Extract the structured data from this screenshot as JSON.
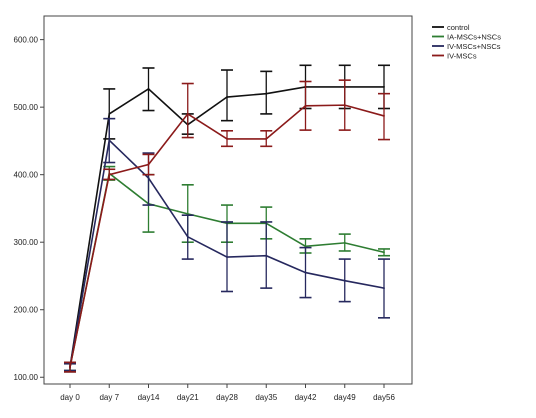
{
  "chart_data": {
    "type": "line",
    "categories": [
      "day 0",
      "day 7",
      "day14",
      "day21",
      "day28",
      "day35",
      "day42",
      "day49",
      "day56"
    ],
    "ylim": [
      90,
      635
    ],
    "yticks": [
      100,
      200,
      300,
      400,
      500,
      600
    ],
    "ytick_labels": [
      "100.00",
      "200.00",
      "300.00",
      "400.00",
      "500.00",
      "600.00"
    ],
    "grid": false,
    "legend_position": "top-right",
    "series": [
      {
        "name": "control",
        "color": "#111111",
        "values": [
          115,
          490,
          527,
          474,
          515,
          520,
          530,
          530,
          530
        ],
        "err_low": [
          108,
          453,
          495,
          460,
          480,
          490,
          498,
          498,
          498
        ],
        "err_high": [
          122,
          527,
          558,
          490,
          555,
          553,
          562,
          562,
          562
        ]
      },
      {
        "name": "IA-MSCs+NSCs",
        "color": "#2e7d32",
        "values": [
          115,
          402,
          357,
          342,
          328,
          328,
          294,
          299,
          285
        ],
        "err_low": [
          110,
          392,
          315,
          300,
          300,
          305,
          284,
          287,
          280
        ],
        "err_high": [
          120,
          412,
          400,
          385,
          355,
          352,
          305,
          312,
          290
        ]
      },
      {
        "name": "IV-MSCs+NSCs",
        "color": "#26285e",
        "values": [
          115,
          451,
          395,
          308,
          278,
          280,
          255,
          243,
          232
        ],
        "err_low": [
          110,
          418,
          355,
          275,
          227,
          232,
          218,
          212,
          188
        ],
        "err_high": [
          120,
          483,
          432,
          340,
          330,
          330,
          292,
          275,
          275
        ]
      },
      {
        "name": "IV-MSCs",
        "color": "#8b1a1a",
        "values": [
          115,
          400,
          415,
          490,
          453,
          453,
          502,
          503,
          487
        ],
        "err_low": [
          108,
          393,
          400,
          455,
          442,
          442,
          466,
          466,
          452
        ],
        "err_high": [
          122,
          408,
          430,
          535,
          465,
          465,
          538,
          540,
          520
        ]
      }
    ]
  }
}
